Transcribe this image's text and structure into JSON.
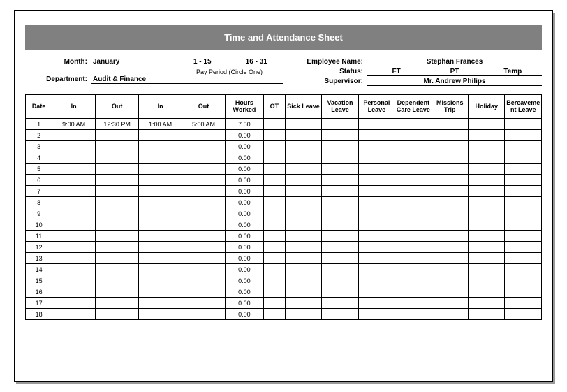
{
  "title": "Time and Attendance Sheet",
  "header": {
    "month_label": "Month:",
    "month_value": "January",
    "period1": "1 - 15",
    "period2": "16 - 31",
    "pay_period_caption": "Pay Period (Circle One)",
    "department_label": "Department:",
    "department_value": "Audit & Finance",
    "employee_name_label": "Employee Name:",
    "employee_name_value": "Stephan Frances",
    "status_label": "Status:",
    "status_ft": "FT",
    "status_pt": "PT",
    "status_temp": "Temp",
    "supervisor_label": "Supervisor:",
    "supervisor_value": "Mr. Andrew Philips"
  },
  "table": {
    "columns": [
      "Date",
      "In",
      "Out",
      "In",
      "Out",
      "Hours Worked",
      "OT",
      "Sick Leave",
      "Vacation Leave",
      "Personal Leave",
      "Dependent Care Leave",
      "Missions Trip",
      "Holiday",
      "Bereavement Leave"
    ],
    "rows": [
      {
        "date": "1",
        "in1": "9:00 AM",
        "out1": "12:30 PM",
        "in2": "1:00 AM",
        "out2": "5:00 AM",
        "hours": "7.50"
      },
      {
        "date": "2",
        "in1": "",
        "out1": "",
        "in2": "",
        "out2": "",
        "hours": "0.00"
      },
      {
        "date": "3",
        "in1": "",
        "out1": "",
        "in2": "",
        "out2": "",
        "hours": "0.00"
      },
      {
        "date": "4",
        "in1": "",
        "out1": "",
        "in2": "",
        "out2": "",
        "hours": "0.00"
      },
      {
        "date": "5",
        "in1": "",
        "out1": "",
        "in2": "",
        "out2": "",
        "hours": "0.00"
      },
      {
        "date": "6",
        "in1": "",
        "out1": "",
        "in2": "",
        "out2": "",
        "hours": "0.00"
      },
      {
        "date": "7",
        "in1": "",
        "out1": "",
        "in2": "",
        "out2": "",
        "hours": "0.00"
      },
      {
        "date": "8",
        "in1": "",
        "out1": "",
        "in2": "",
        "out2": "",
        "hours": "0.00"
      },
      {
        "date": "9",
        "in1": "",
        "out1": "",
        "in2": "",
        "out2": "",
        "hours": "0.00"
      },
      {
        "date": "10",
        "in1": "",
        "out1": "",
        "in2": "",
        "out2": "",
        "hours": "0.00"
      },
      {
        "date": "11",
        "in1": "",
        "out1": "",
        "in2": "",
        "out2": "",
        "hours": "0.00"
      },
      {
        "date": "12",
        "in1": "",
        "out1": "",
        "in2": "",
        "out2": "",
        "hours": "0.00"
      },
      {
        "date": "13",
        "in1": "",
        "out1": "",
        "in2": "",
        "out2": "",
        "hours": "0.00"
      },
      {
        "date": "14",
        "in1": "",
        "out1": "",
        "in2": "",
        "out2": "",
        "hours": "0.00"
      },
      {
        "date": "15",
        "in1": "",
        "out1": "",
        "in2": "",
        "out2": "",
        "hours": "0.00"
      },
      {
        "date": "16",
        "in1": "",
        "out1": "",
        "in2": "",
        "out2": "",
        "hours": "0.00"
      },
      {
        "date": "17",
        "in1": "",
        "out1": "",
        "in2": "",
        "out2": "",
        "hours": "0.00"
      },
      {
        "date": "18",
        "in1": "",
        "out1": "",
        "in2": "",
        "out2": "",
        "hours": "0.00"
      }
    ]
  }
}
